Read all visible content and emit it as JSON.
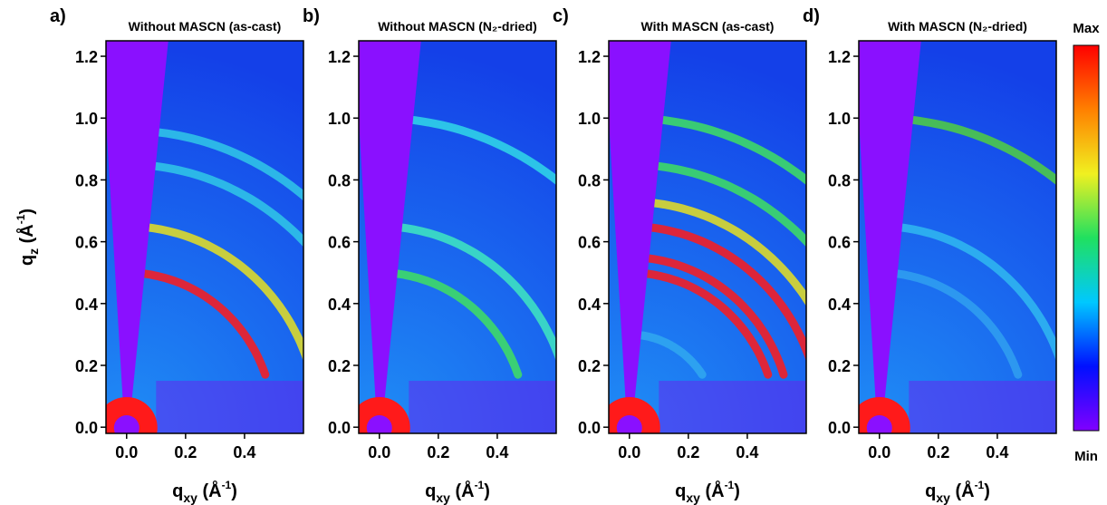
{
  "chart_data": [
    {
      "type": "heatmap",
      "panel_label": "a)",
      "title": "Without MASCN (as-cast)",
      "xlabel": {
        "text": "q",
        "sub": "xy",
        "unit": " (Å",
        "sup": "-1",
        "end": ")"
      },
      "ylabel": {
        "text": "q",
        "sub": "z",
        "unit": " (Å",
        "sup": "-1",
        "end": ")"
      },
      "xlim": [
        -0.07,
        0.6
      ],
      "ylim": [
        -0.02,
        1.25
      ],
      "xticks": [
        {
          "value": 0,
          "label": "0.0"
        },
        0.2,
        0.4
      ],
      "yticks": [
        {
          "value": 0,
          "label": "0.0"
        },
        0.2,
        0.4,
        0.6,
        0.8,
        {
          "value": 1,
          "label": "1.0"
        },
        1.2
      ],
      "rings": [
        {
          "q": 0.5,
          "color": "#ff1a1a"
        },
        {
          "q": 0.65,
          "color": "#e8e020"
        },
        {
          "q": 0.85,
          "color": "#30c8e8"
        },
        {
          "q": 0.96,
          "color": "#30c8e8"
        }
      ]
    },
    {
      "type": "heatmap",
      "panel_label": "b)",
      "title": "Without MASCN (N₂-dried)",
      "xlabel": {
        "text": "q",
        "sub": "xy",
        "unit": " (Å",
        "sup": "-1",
        "end": ")"
      },
      "xlim": [
        -0.07,
        0.6
      ],
      "ylim": [
        -0.02,
        1.25
      ],
      "xticks": [
        {
          "value": 0,
          "label": "0.0"
        },
        0.2,
        0.4
      ],
      "yticks": [
        {
          "value": 0,
          "label": "0.0"
        },
        0.2,
        0.4,
        0.6,
        0.8,
        {
          "value": 1,
          "label": "1.0"
        },
        1.2
      ],
      "rings": [
        {
          "q": 0.5,
          "color": "#40e060"
        },
        {
          "q": 0.65,
          "color": "#40e8c0"
        },
        {
          "q": 1.0,
          "color": "#30d8e8"
        }
      ]
    },
    {
      "type": "heatmap",
      "panel_label": "c)",
      "title": "With MASCN (as-cast)",
      "xlabel": {
        "text": "q",
        "sub": "xy",
        "unit": " (Å",
        "sup": "-1",
        "end": ")"
      },
      "xlim": [
        -0.07,
        0.6
      ],
      "ylim": [
        -0.02,
        1.25
      ],
      "xticks": [
        {
          "value": 0,
          "label": "0.0"
        },
        0.2,
        0.4
      ],
      "yticks": [
        {
          "value": 0,
          "label": "0.0"
        },
        0.2,
        0.4,
        0.6,
        0.8,
        {
          "value": 1,
          "label": "1.0"
        },
        1.2
      ],
      "rings": [
        {
          "q": 0.3,
          "color": "#30a8f0"
        },
        {
          "q": 0.5,
          "color": "#ff1a1a"
        },
        {
          "q": 0.55,
          "color": "#ff1a1a"
        },
        {
          "q": 0.65,
          "color": "#ff1a1a"
        },
        {
          "q": 0.73,
          "color": "#e8e020"
        },
        {
          "q": 0.85,
          "color": "#40e060"
        },
        {
          "q": 1.0,
          "color": "#40e060"
        }
      ]
    },
    {
      "type": "heatmap",
      "panel_label": "d)",
      "title": "With MASCN (N₂-dried)",
      "xlabel": {
        "text": "q",
        "sub": "xy",
        "unit": " (Å",
        "sup": "-1",
        "end": ")"
      },
      "xlim": [
        -0.07,
        0.6
      ],
      "ylim": [
        -0.02,
        1.25
      ],
      "xticks": [
        {
          "value": 0,
          "label": "0.0"
        },
        0.2,
        0.4
      ],
      "yticks": [
        {
          "value": 0,
          "label": "0.0"
        },
        0.2,
        0.4,
        0.6,
        0.8,
        {
          "value": 1,
          "label": "1.0"
        },
        1.2
      ],
      "rings": [
        {
          "q": 0.5,
          "color": "#30a0f0"
        },
        {
          "q": 0.65,
          "color": "#30b8f0"
        },
        {
          "q": 1.0,
          "color": "#50d040"
        }
      ]
    }
  ],
  "colorbar": {
    "max_label": "Max",
    "min_label": "Min",
    "colors": [
      "#8000ff",
      "#0010ff",
      "#00c8ff",
      "#20e060",
      "#f0f020",
      "#ff8000",
      "#ff0000"
    ]
  }
}
